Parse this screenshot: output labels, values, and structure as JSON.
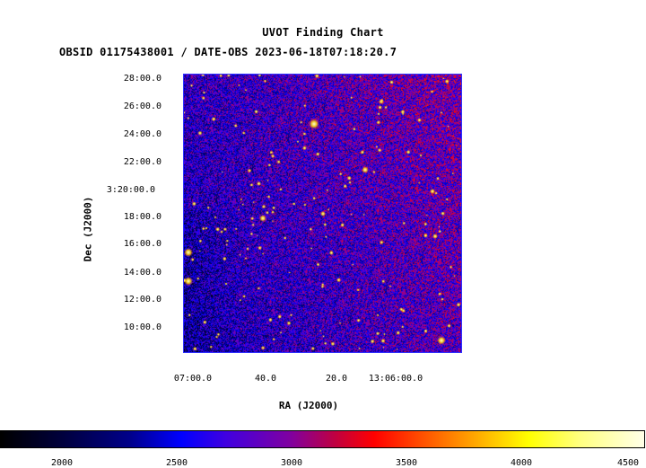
{
  "header": {
    "title": "UVOT Finding Chart",
    "subtitle": "OBSID 01175438001 / DATE-OBS 2023-06-18T07:18:20.7"
  },
  "axes": {
    "xlabel": "RA (J2000)",
    "ylabel": "Dec (J2000)",
    "yticks": [
      "28:00.0",
      "26:00.0",
      "24:00.0",
      "22:00.0",
      "3:20:00.0",
      "18:00.0",
      "16:00.0",
      "14:00.0",
      "12:00.0",
      "10:00.0"
    ],
    "xticks": [
      "07:00.0",
      "40.0",
      "20.0",
      "13:06:00.0"
    ]
  },
  "colorbar": {
    "ticks": [
      "2000",
      "2500",
      "3000",
      "3500",
      "4000",
      "4500"
    ]
  }
}
